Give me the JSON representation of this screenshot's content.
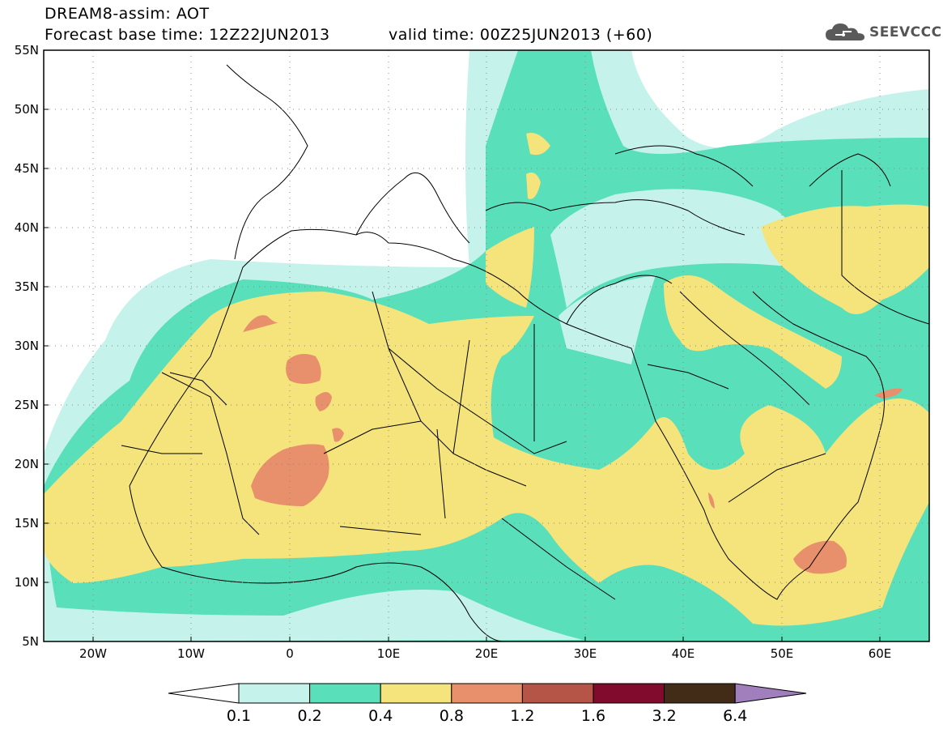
{
  "header": {
    "line1": "DREAM8-assim: AOT",
    "line2": "Forecast base time: 12Z22JUN2013",
    "line3": "valid time: 00Z25JUN2013 (+60)"
  },
  "logo": {
    "text": "SEEVCCC",
    "icon": "cloud-icon"
  },
  "map": {
    "lat_labels": [
      "55N",
      "50N",
      "45N",
      "40N",
      "35N",
      "30N",
      "25N",
      "20N",
      "15N",
      "10N",
      "5N"
    ],
    "lon_labels": [
      "20W",
      "10W",
      "0",
      "10E",
      "20E",
      "30E",
      "40E",
      "50E",
      "60E"
    ],
    "lat_range": [
      5,
      55
    ],
    "lon_range": [
      -25,
      65
    ],
    "grid": "dotted"
  },
  "colorbar": {
    "levels": [
      "0.1",
      "0.2",
      "0.4",
      "0.8",
      "1.2",
      "1.6",
      "3.2",
      "6.4"
    ],
    "colors": [
      "#c6f2ec",
      "#59dfb9",
      "#f5e37c",
      "#e8906b",
      "#b45548",
      "#800b2d",
      "#422b17"
    ],
    "under_color": "#ffffff",
    "over_color": "#a17fbd"
  }
}
